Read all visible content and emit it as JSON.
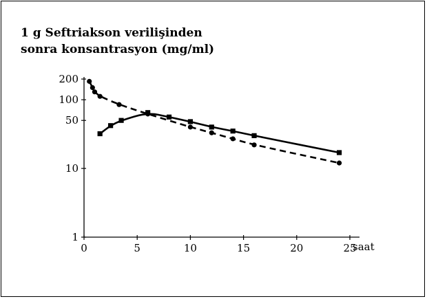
{
  "chart_data": {
    "type": "line",
    "title_lines": [
      "1 g Seftriakson verilişinden",
      "sonra konsantrasyon (mg/ml)"
    ],
    "xlabel": "saat",
    "ylabel": "",
    "xlim": [
      0,
      25
    ],
    "ylim": [
      1,
      200
    ],
    "y_scale": "log",
    "x_ticks": [
      "0",
      "5",
      "10",
      "15",
      "20",
      "25"
    ],
    "y_ticks": [
      {
        "label": "200",
        "value": 200
      },
      {
        "label": "100",
        "value": 100
      },
      {
        "label": "50",
        "value": 50
      },
      {
        "label": "10",
        "value": 10
      },
      {
        "label": "1",
        "value": 1
      }
    ],
    "grid": false,
    "legend": "none",
    "series": [
      {
        "style": "dashed",
        "marker": "circle",
        "points": [
          [
            0.5,
            185
          ],
          [
            0.8,
            150
          ],
          [
            1.0,
            130
          ],
          [
            1.5,
            112
          ],
          [
            3.3,
            85
          ],
          [
            6.0,
            62
          ],
          [
            10.0,
            40
          ],
          [
            12.0,
            33
          ],
          [
            14.0,
            27
          ],
          [
            16.0,
            22
          ],
          [
            24.0,
            12
          ]
        ]
      },
      {
        "style": "solid",
        "marker": "square",
        "points": [
          [
            1.5,
            32
          ],
          [
            2.5,
            42
          ],
          [
            3.5,
            50
          ],
          [
            6.0,
            65
          ],
          [
            8.0,
            56
          ],
          [
            10.0,
            48
          ],
          [
            12.0,
            40
          ],
          [
            14.0,
            35
          ],
          [
            16.0,
            30
          ],
          [
            24.0,
            17
          ]
        ]
      }
    ]
  }
}
